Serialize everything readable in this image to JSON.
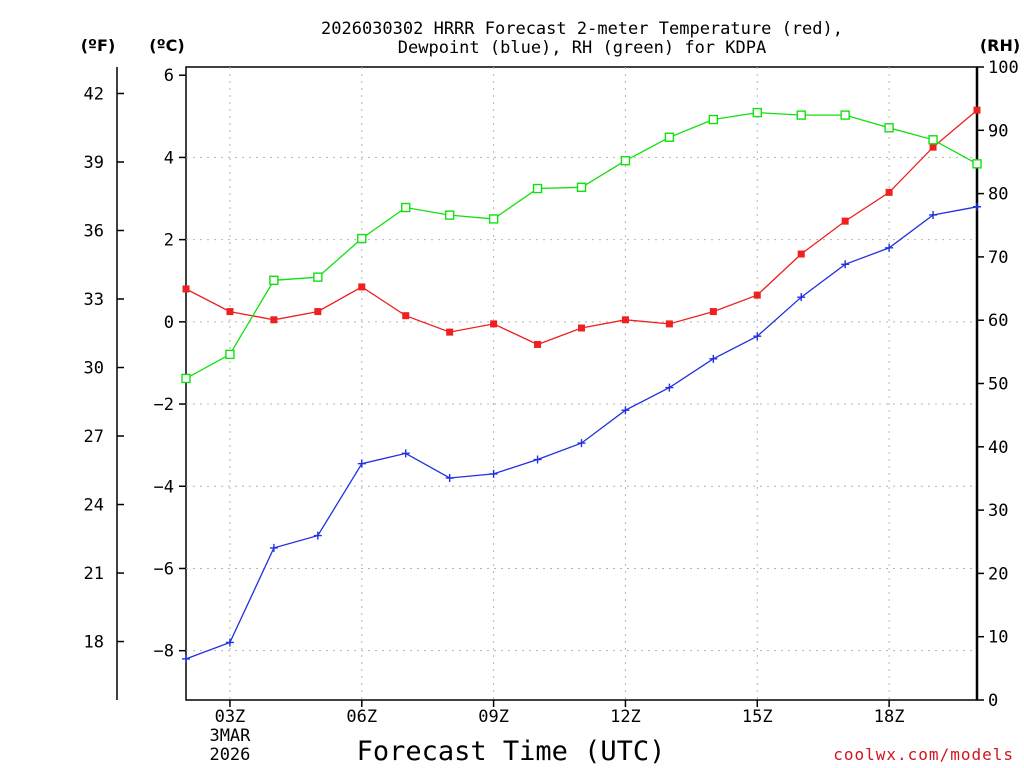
{
  "chart_data": {
    "type": "line",
    "title_line1": "2026030302 HRRR Forecast 2-meter Temperature (red),",
    "title_line2": "Dewpoint (blue), RH (green) for KDPA",
    "unit_f": "(ºF)",
    "unit_c": "(ºC)",
    "unit_rh": "(RH)",
    "xlabel": "Forecast Time (UTC)",
    "watermark": "coolwx.com/models",
    "x_range": [
      2,
      20
    ],
    "x_ticks": [
      {
        "x": 3,
        "label": "03Z",
        "sub1": "3MAR",
        "sub2": "2026"
      },
      {
        "x": 6,
        "label": "06Z"
      },
      {
        "x": 9,
        "label": "09Z"
      },
      {
        "x": 12,
        "label": "12Z"
      },
      {
        "x": 15,
        "label": "15Z"
      },
      {
        "x": 18,
        "label": "18Z"
      }
    ],
    "left_c_range": [
      -9.2,
      6.2
    ],
    "left_c_ticks": [
      -8,
      -6,
      -4,
      -2,
      0,
      2,
      4,
      6
    ],
    "left_c_tick_labels": [
      "−8",
      "−6",
      "−4",
      "−2",
      "0",
      "2",
      "4",
      "6"
    ],
    "left_f_ticks": [
      18,
      21,
      24,
      27,
      30,
      33,
      36,
      39,
      42
    ],
    "right_rh_range": [
      0,
      100
    ],
    "right_rh_ticks": [
      0,
      10,
      20,
      30,
      40,
      50,
      60,
      70,
      80,
      90,
      100
    ],
    "x": [
      2,
      3,
      4,
      5,
      6,
      7,
      8,
      9,
      10,
      11,
      12,
      13,
      14,
      15,
      16,
      17,
      18,
      19,
      20
    ],
    "series": [
      {
        "name": "Temperature",
        "axis": "c",
        "color": "#ee2020",
        "marker": "filled-square",
        "values": [
          0.8,
          0.25,
          0.05,
          0.25,
          0.85,
          0.15,
          -0.25,
          -0.05,
          -0.55,
          -0.15,
          0.05,
          -0.05,
          0.25,
          0.65,
          1.65,
          2.45,
          3.15,
          4.25,
          5.15
        ]
      },
      {
        "name": "Dewpoint",
        "axis": "c",
        "color": "#2030e0",
        "marker": "plus",
        "values": [
          -8.2,
          -7.8,
          -5.5,
          -5.2,
          -3.45,
          -3.2,
          -3.8,
          -3.7,
          -3.35,
          -2.95,
          -2.15,
          -1.6,
          -0.9,
          -0.35,
          0.6,
          1.4,
          1.8,
          2.6,
          2.8
        ]
      },
      {
        "name": "RH",
        "axis": "rh",
        "color": "#10e010",
        "marker": "open-square",
        "values": [
          50.8,
          54.6,
          66.3,
          66.8,
          72.9,
          77.8,
          76.6,
          76.0,
          80.8,
          81.0,
          85.2,
          88.9,
          91.7,
          92.8,
          92.4,
          92.4,
          90.4,
          88.5,
          84.7
        ]
      }
    ]
  }
}
